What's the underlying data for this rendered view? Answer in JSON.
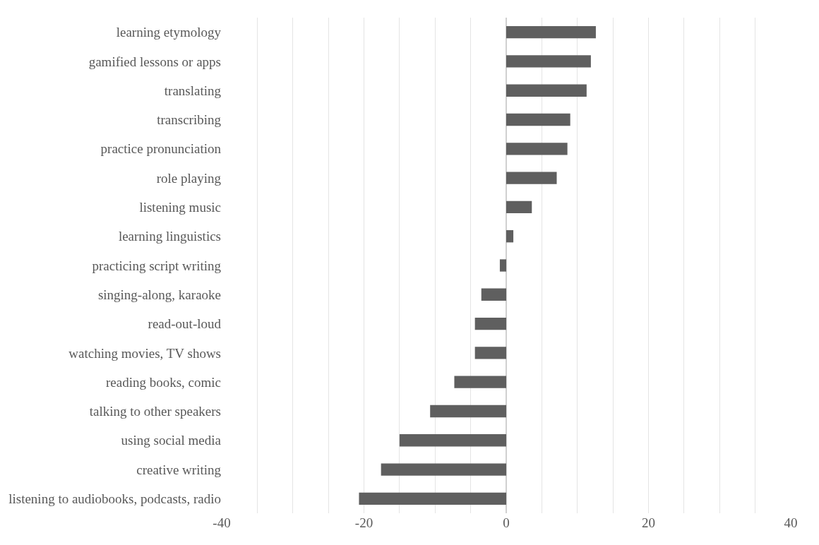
{
  "chart_data": {
    "type": "bar",
    "orientation": "horizontal",
    "categories": [
      "learning etymology",
      "gamified lessons or apps",
      "translating",
      "transcribing",
      "practice pronunciation",
      "role playing",
      "listening music",
      "learning linguistics",
      "practicing script writing",
      "singing-along, karaoke",
      "read-out-loud",
      "watching movies, TV shows",
      "reading books, comic",
      "talking to other speakers",
      "using social media",
      "creative writing",
      "listening to audiobooks, podcasts, radio"
    ],
    "values": [
      12.6,
      11.9,
      11.3,
      9.0,
      8.6,
      7.1,
      3.6,
      1.0,
      -0.9,
      -3.5,
      -4.4,
      -4.4,
      -7.3,
      -10.7,
      -15.0,
      -17.6,
      -20.7
    ],
    "color": "#5f5f5f",
    "xlim": [
      -40,
      40
    ],
    "xticks": [
      -40,
      {
        "value": -35,
        "label": null
      },
      {
        "value": -30,
        "label": null
      },
      {
        "value": -25,
        "label": null
      },
      -20,
      {
        "value": -15,
        "label": null
      },
      {
        "value": -10,
        "label": null
      },
      {
        "value": -5,
        "label": null
      },
      0,
      {
        "value": 5,
        "label": null
      },
      {
        "value": 10,
        "label": null
      },
      {
        "value": 15,
        "label": null
      },
      20,
      {
        "value": 25,
        "label": null
      },
      {
        "value": 30,
        "label": null
      },
      {
        "value": 35,
        "label": null
      },
      40
    ],
    "grid": "x",
    "legend": false
  }
}
